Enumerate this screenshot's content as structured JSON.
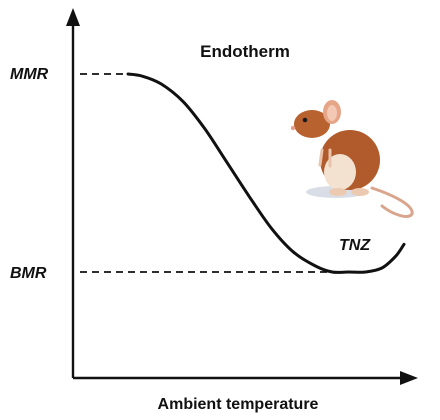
{
  "chart_data": {
    "type": "line",
    "title": "Endotherm",
    "xlabel": "Ambient temperature",
    "ylabel": "",
    "y_reference_labels": [
      "MMR",
      "BMR"
    ],
    "curve_annotation": "TNZ",
    "series": [
      {
        "x": [
          0,
          0.05,
          0.12,
          0.2,
          0.28,
          0.36,
          0.44,
          0.52,
          0.6,
          0.68,
          0.74,
          0.8,
          0.86,
          0.92,
          0.97,
          1.0
        ],
        "y": [
          1.0,
          0.99,
          0.95,
          0.86,
          0.72,
          0.55,
          0.38,
          0.22,
          0.1,
          0.03,
          0.0,
          0.0,
          0.0,
          0.02,
          0.08,
          0.14
        ]
      }
    ],
    "grid": false,
    "legend": "none"
  },
  "colors": {
    "axis": "#111111",
    "curve": "#111111",
    "dashed": "#111111"
  },
  "image": {
    "icon": "mouse-icon"
  }
}
